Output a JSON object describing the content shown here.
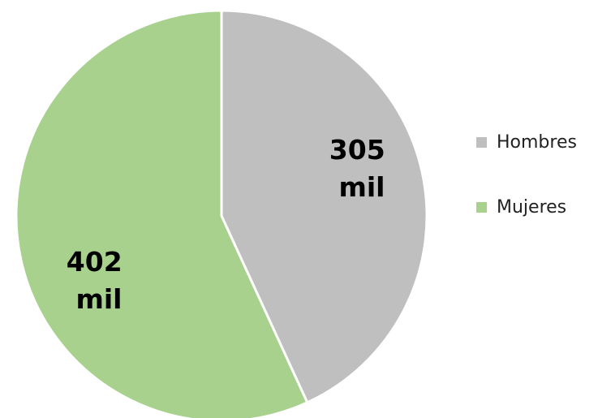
{
  "chart_data": {
    "type": "pie",
    "title": "",
    "categories": [
      "Hombres",
      "Mujeres"
    ],
    "values": [
      305,
      402
    ],
    "units": "mil",
    "data_labels": [
      {
        "line1": "305",
        "line2": "mil"
      },
      {
        "line1": "402",
        "line2": "mil"
      }
    ],
    "colors": [
      "#bfbfbf",
      "#a9d18e"
    ],
    "legend_position": "right",
    "start_angle": "12 o'clock, clockwise"
  },
  "legend": {
    "items": [
      {
        "label": "Hombres",
        "color": "#bfbfbf"
      },
      {
        "label": "Mujeres",
        "color": "#a9d18e"
      }
    ]
  }
}
